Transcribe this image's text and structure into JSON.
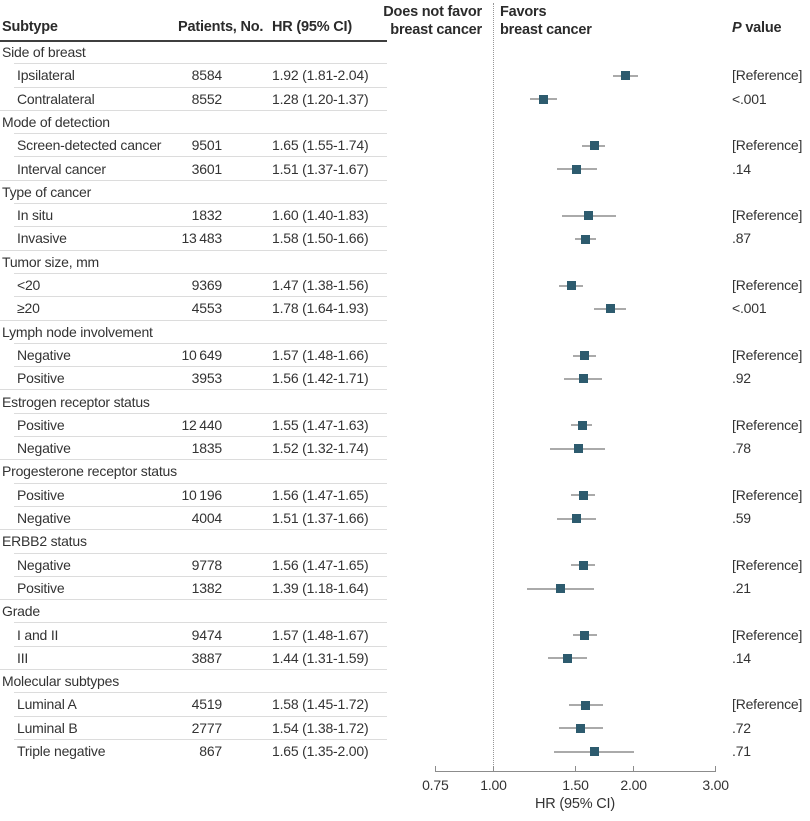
{
  "chart_data": {
    "type": "scatter",
    "subtype": "forest-plot",
    "xlabel": "HR (95% CI)",
    "x_scale": "log",
    "x_range": [
      0.75,
      3.0
    ],
    "x_ticks": [
      0.75,
      1.0,
      1.5,
      2.0,
      3.0
    ],
    "x_tick_labels": [
      "0.75",
      "1.00",
      "1.50",
      "2.00",
      "3.00"
    ],
    "reference_line": 1.0,
    "grid": "off",
    "region_labels": {
      "left": [
        "Does not favor",
        "breast cancer"
      ],
      "right": [
        "Favors",
        "breast cancer"
      ]
    },
    "groups": [
      {
        "label": "Side of breast",
        "items": [
          {
            "label": "Ipsilateral",
            "patients": "8584",
            "hr_text": "1.92 (1.81-2.04)",
            "hr": 1.92,
            "ci_low": 1.81,
            "ci_high": 2.04,
            "p": "[Reference]"
          },
          {
            "label": "Contralateral",
            "patients": "8552",
            "hr_text": "1.28 (1.20-1.37)",
            "hr": 1.28,
            "ci_low": 1.2,
            "ci_high": 1.37,
            "p": "<.001"
          }
        ]
      },
      {
        "label": "Mode of detection",
        "items": [
          {
            "label": "Screen-detected cancer",
            "patients": "9501",
            "hr_text": "1.65 (1.55-1.74)",
            "hr": 1.65,
            "ci_low": 1.55,
            "ci_high": 1.74,
            "p": "[Reference]"
          },
          {
            "label": "Interval cancer",
            "patients": "3601",
            "hr_text": "1.51 (1.37-1.67)",
            "hr": 1.51,
            "ci_low": 1.37,
            "ci_high": 1.67,
            "p": ".14"
          }
        ]
      },
      {
        "label": "Type of cancer",
        "items": [
          {
            "label": "In situ",
            "patients": "1832",
            "hr_text": "1.60 (1.40-1.83)",
            "hr": 1.6,
            "ci_low": 1.4,
            "ci_high": 1.83,
            "p": "[Reference]"
          },
          {
            "label": "Invasive",
            "patients": "13 483",
            "hr_text": "1.58 (1.50-1.66)",
            "hr": 1.58,
            "ci_low": 1.5,
            "ci_high": 1.66,
            "p": ".87"
          }
        ]
      },
      {
        "label": "Tumor size, mm",
        "items": [
          {
            "label": "<20",
            "patients": "9369",
            "hr_text": "1.47 (1.38-1.56)",
            "hr": 1.47,
            "ci_low": 1.38,
            "ci_high": 1.56,
            "p": "[Reference]"
          },
          {
            "label": "≥20",
            "patients": "4553",
            "hr_text": "1.78 (1.64-1.93)",
            "hr": 1.78,
            "ci_low": 1.64,
            "ci_high": 1.93,
            "p": "<.001"
          }
        ]
      },
      {
        "label": "Lymph node involvement",
        "items": [
          {
            "label": "Negative",
            "patients": "10 649",
            "hr_text": "1.57 (1.48-1.66)",
            "hr": 1.57,
            "ci_low": 1.48,
            "ci_high": 1.66,
            "p": "[Reference]"
          },
          {
            "label": "Positive",
            "patients": "3953",
            "hr_text": "1.56 (1.42-1.71)",
            "hr": 1.56,
            "ci_low": 1.42,
            "ci_high": 1.71,
            "p": ".92"
          }
        ]
      },
      {
        "label": "Estrogen receptor status",
        "items": [
          {
            "label": "Positive",
            "patients": "12 440",
            "hr_text": "1.55 (1.47-1.63)",
            "hr": 1.55,
            "ci_low": 1.47,
            "ci_high": 1.63,
            "p": "[Reference]"
          },
          {
            "label": "Negative",
            "patients": "1835",
            "hr_text": "1.52 (1.32-1.74)",
            "hr": 1.52,
            "ci_low": 1.32,
            "ci_high": 1.74,
            "p": ".78"
          }
        ]
      },
      {
        "label": "Progesterone receptor status",
        "items": [
          {
            "label": "Positive",
            "patients": "10 196",
            "hr_text": "1.56 (1.47-1.65)",
            "hr": 1.56,
            "ci_low": 1.47,
            "ci_high": 1.65,
            "p": "[Reference]"
          },
          {
            "label": "Negative",
            "patients": "4004",
            "hr_text": "1.51 (1.37-1.66)",
            "hr": 1.51,
            "ci_low": 1.37,
            "ci_high": 1.66,
            "p": ".59"
          }
        ]
      },
      {
        "label": "ERBB2 status",
        "items": [
          {
            "label": "Negative",
            "patients": "9778",
            "hr_text": "1.56 (1.47-1.65)",
            "hr": 1.56,
            "ci_low": 1.47,
            "ci_high": 1.65,
            "p": "[Reference]"
          },
          {
            "label": "Positive",
            "patients": "1382",
            "hr_text": "1.39 (1.18-1.64)",
            "hr": 1.39,
            "ci_low": 1.18,
            "ci_high": 1.64,
            "p": ".21"
          }
        ]
      },
      {
        "label": "Grade",
        "items": [
          {
            "label": "I and II",
            "patients": "9474",
            "hr_text": "1.57 (1.48-1.67)",
            "hr": 1.57,
            "ci_low": 1.48,
            "ci_high": 1.67,
            "p": "[Reference]"
          },
          {
            "label": "III",
            "patients": "3887",
            "hr_text": "1.44 (1.31-1.59)",
            "hr": 1.44,
            "ci_low": 1.31,
            "ci_high": 1.59,
            "p": ".14"
          }
        ]
      },
      {
        "label": "Molecular subtypes",
        "items": [
          {
            "label": "Luminal A",
            "patients": "4519",
            "hr_text": "1.58 (1.45-1.72)",
            "hr": 1.58,
            "ci_low": 1.45,
            "ci_high": 1.72,
            "p": "[Reference]"
          },
          {
            "label": "Luminal B",
            "patients": "2777",
            "hr_text": "1.54 (1.38-1.72)",
            "hr": 1.54,
            "ci_low": 1.38,
            "ci_high": 1.72,
            "p": ".72"
          },
          {
            "label": "Triple negative",
            "patients": "867",
            "hr_text": "1.65 (1.35-2.00)",
            "hr": 1.65,
            "ci_low": 1.35,
            "ci_high": 2.0,
            "p": ".71"
          }
        ]
      }
    ]
  },
  "table_headers": {
    "subtype": "Subtype",
    "patients": "Patients, No.",
    "hr": "HR (95% CI)"
  },
  "p_value_header": {
    "italic": "P",
    "rest": " value"
  },
  "colors": {
    "marker": "#2d5b6e",
    "ci_line": "#aaaaaa",
    "axis": "#8c8c8c",
    "separator": "#dcdcdc",
    "header_rule": "#3f3f3f",
    "text": "#333333"
  }
}
